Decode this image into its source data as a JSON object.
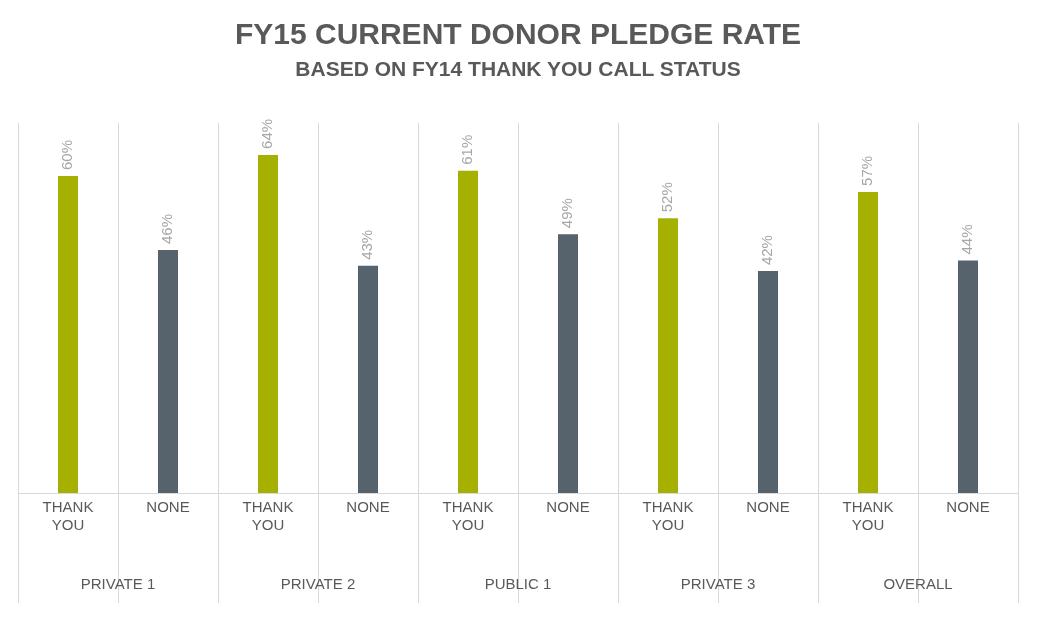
{
  "chart_data": {
    "type": "bar",
    "title": "FY15 CURRENT DONOR PLEDGE RATE",
    "subtitle": "BASED ON FY14 THANK YOU CALL STATUS",
    "categories": [
      "THANK YOU",
      "NONE",
      "THANK YOU",
      "NONE",
      "THANK YOU",
      "NONE",
      "THANK YOU",
      "NONE",
      "THANK YOU",
      "NONE"
    ],
    "values": [
      60,
      46,
      64,
      43,
      61,
      49,
      52,
      42,
      57,
      44
    ],
    "colors": [
      "#a5b000",
      "#56626c",
      "#a5b000",
      "#56626c",
      "#a5b000",
      "#56626c",
      "#a5b000",
      "#56626c",
      "#a5b000",
      "#56626c"
    ],
    "value_labels": [
      "60%",
      "46%",
      "64%",
      "43%",
      "61%",
      "49%",
      "52%",
      "42%",
      "57%",
      "44%"
    ],
    "annotations": [
      "PRIVATE 1",
      "PRIVATE 2",
      "PUBLIC 1",
      "PRIVATE 3",
      "OVERALL"
    ],
    "grid": "x",
    "legend": false
  }
}
